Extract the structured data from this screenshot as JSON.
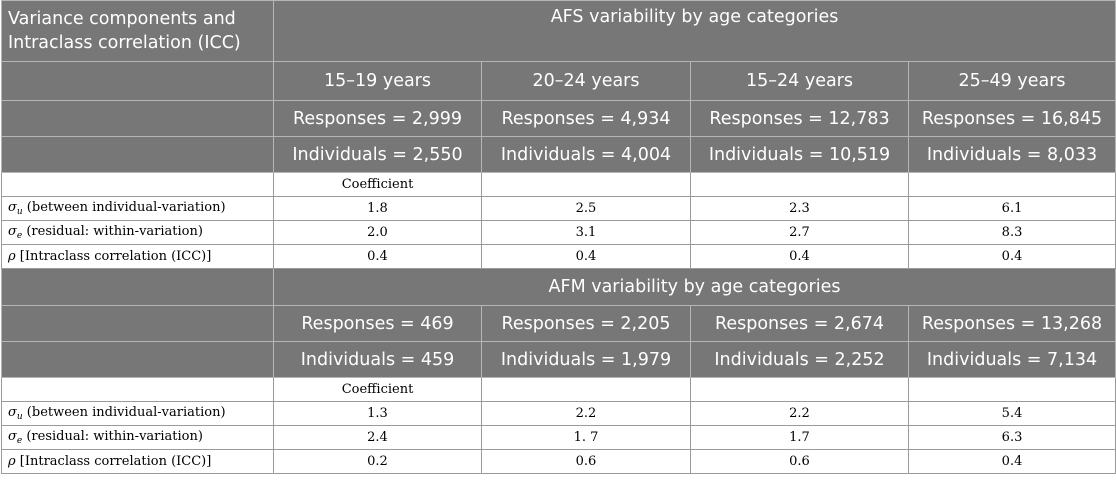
{
  "header": {
    "corner": "Variance components and Intraclass correlation (ICC)",
    "afs_title": "AFS variability by age categories",
    "afm_title": "AFM variability by age categories"
  },
  "afs": {
    "ages": [
      "15–19 years",
      "20–24 years",
      "15–24 years",
      "25–49 years"
    ],
    "responses": [
      "Responses = 2,999",
      "Responses = 4,934",
      "Responses = 12,783",
      "Responses = 16,845"
    ],
    "individuals": [
      "Individuals = 2,550",
      "Individuals = 4,004",
      "Individuals = 10,519",
      "Individuals = 8,033"
    ],
    "coef_label": "Coefficient",
    "sigma_u": [
      "1.8",
      "2.5",
      "2.3",
      "6.1"
    ],
    "sigma_e": [
      "2.0",
      "3.1",
      "2.7",
      "8.3"
    ],
    "rho": [
      "0.4",
      "0.4",
      "0.4",
      "0.4"
    ]
  },
  "afm": {
    "responses": [
      "Responses = 469",
      "Responses = 2,205",
      "Responses = 2,674",
      "Responses = 13,268"
    ],
    "individuals": [
      "Individuals = 459",
      "Individuals = 1,979",
      "Individuals = 2,252",
      "Individuals = 7,134"
    ],
    "coef_label": "Coefficient",
    "sigma_u": [
      "1.3",
      "2.2",
      "2.2",
      "5.4"
    ],
    "sigma_e": [
      "2.4",
      "1. 7",
      "1.7",
      "6.3"
    ],
    "rho": [
      "0.2",
      "0.6",
      "0.6",
      "0.4"
    ]
  },
  "labels": {
    "sigma": "σ",
    "rho_sym": "ρ",
    "u": "u",
    "e": "e",
    "sigma_u_text": " (between individual-variation)",
    "sigma_e_text": " (residual: within-variation)",
    "rho_text": " [Intraclass correlation (ICC)]"
  }
}
